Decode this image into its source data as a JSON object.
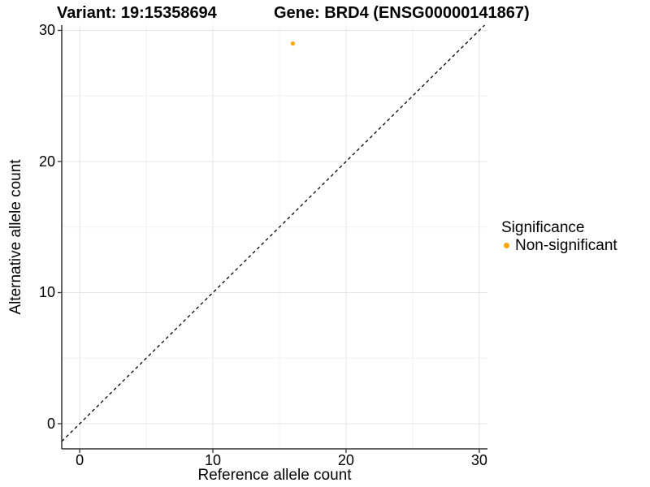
{
  "chart_data": {
    "type": "scatter",
    "title_left": "Variant: 19:15358694",
    "title_right": "Gene: BRD4 (ENSG00000141867)",
    "xlabel": "Reference allele count",
    "ylabel": "Alternative allele count",
    "xlim": [
      -1.35,
      30.62
    ],
    "ylim": [
      -1.92,
      30.4
    ],
    "x_breaks": [
      0,
      10,
      20,
      30
    ],
    "y_breaks": [
      0,
      10,
      20,
      30
    ],
    "x_minor_breaks": [
      5,
      15,
      25
    ],
    "y_minor_breaks": [
      5,
      15,
      25
    ],
    "grid": true,
    "points": [
      {
        "x": 16,
        "y": 29,
        "series": "Non-significant"
      }
    ],
    "identity_line": {
      "slope": 1,
      "intercept": 0,
      "style": "dashed",
      "color": "#000000"
    },
    "legend": {
      "title": "Significance",
      "position": "right",
      "items": [
        {
          "label": "Non-significant",
          "color": "#FFA500"
        }
      ]
    },
    "colors": {
      "point": "#FFA500",
      "grid_major": "#e4e4e4",
      "grid_minor": "#f0f0f0",
      "axis": "#333333",
      "text": "#000000",
      "background": "#ffffff"
    }
  }
}
